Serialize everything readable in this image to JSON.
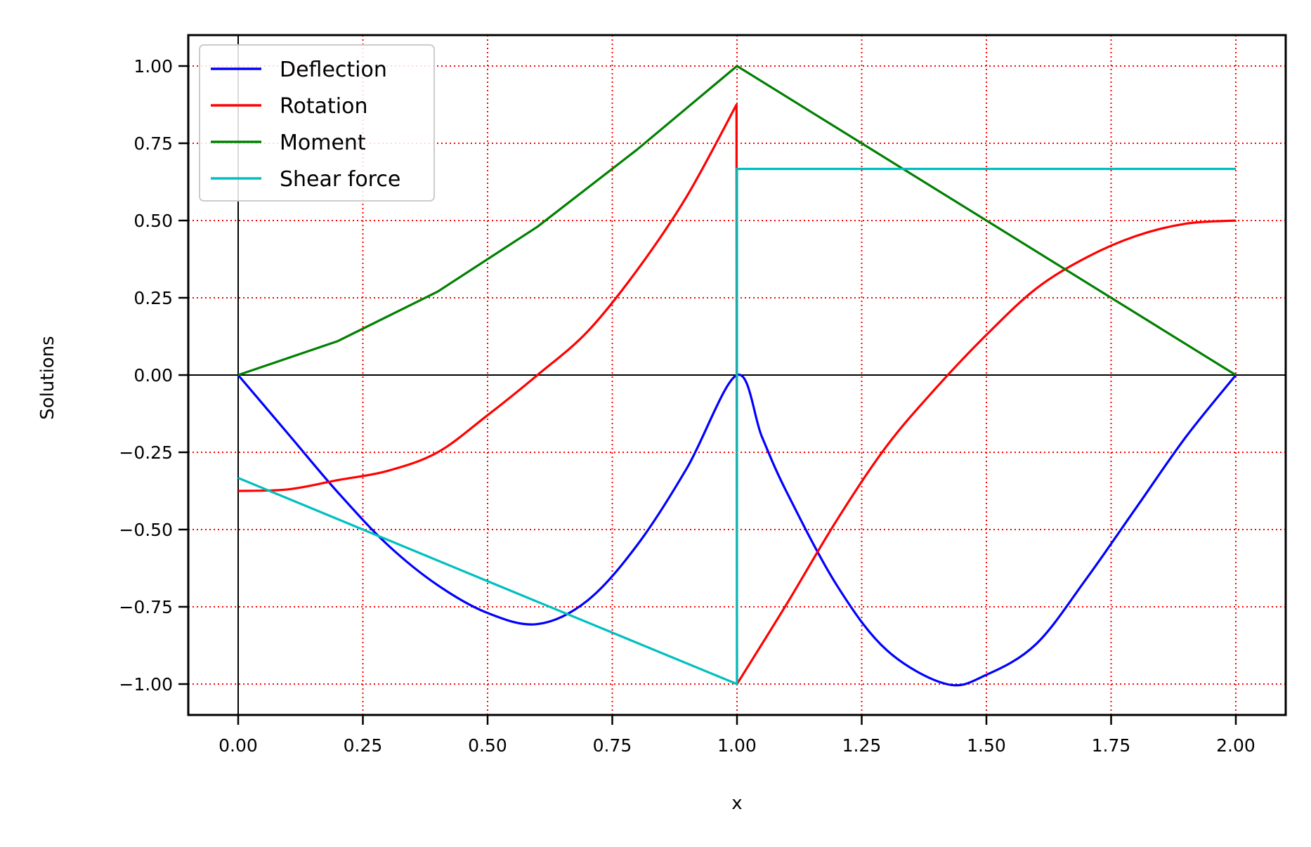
{
  "chart_data": {
    "type": "line",
    "title": "",
    "xlabel": "x",
    "ylabel": "Solutions",
    "xlim": [
      -0.1,
      2.1
    ],
    "ylim": [
      -1.1,
      1.1
    ],
    "xticks": [
      0,
      0.25,
      0.5,
      0.75,
      1.0,
      1.25,
      1.5,
      1.75,
      2.0
    ],
    "xtick_labels": [
      "0.00",
      "0.25",
      "0.50",
      "0.75",
      "1.00",
      "1.25",
      "1.50",
      "1.75",
      "2.00"
    ],
    "yticks": [
      1.0,
      0.75,
      0.5,
      0.25,
      0,
      -0.25,
      -0.5,
      -0.75,
      -1.0
    ],
    "ytick_labels": [
      "1.00",
      "0.75",
      "0.50",
      "0.25",
      "0.00",
      "−0.25",
      "−0.50",
      "−0.75",
      "−1.00"
    ],
    "grid": true,
    "grid_color": "#ff0000",
    "legend_position": "top-left",
    "series": [
      {
        "name": "Deflection",
        "color": "#0000ff",
        "x": [
          0,
          0.1,
          0.2,
          0.3,
          0.4,
          0.5,
          0.6,
          0.7,
          0.8,
          0.9,
          1.0,
          1.05,
          1.1,
          1.2,
          1.3,
          1.42,
          1.5,
          1.6,
          1.7,
          1.8,
          1.9,
          2.0
        ],
        "y": [
          0,
          -0.19,
          -0.38,
          -0.55,
          -0.68,
          -0.77,
          -0.806,
          -0.73,
          -0.55,
          -0.3,
          0,
          -0.2,
          -0.38,
          -0.68,
          -0.89,
          -1.0,
          -0.97,
          -0.87,
          -0.66,
          -0.43,
          -0.2,
          0
        ]
      },
      {
        "name": "Rotation",
        "color": "#ff0000",
        "x": [
          0,
          0.1,
          0.2,
          0.3,
          0.4,
          0.5,
          0.6,
          0.7,
          0.8,
          0.9,
          0.999,
          1.0,
          1.1,
          1.2,
          1.3,
          1.4,
          1.5,
          1.6,
          1.7,
          1.8,
          1.9,
          2.0
        ],
        "y": [
          -0.375,
          -0.37,
          -0.34,
          -0.31,
          -0.25,
          -0.13,
          0,
          0.14,
          0.34,
          0.58,
          0.875,
          -1.0,
          -0.74,
          -0.47,
          -0.23,
          -0.04,
          0.13,
          0.28,
          0.38,
          0.45,
          0.49,
          0.5
        ],
        "annotation": ""
      },
      {
        "name": "Moment",
        "color": "#008000",
        "x": [
          0,
          0.2,
          0.4,
          0.6,
          0.8,
          1.0,
          1.2,
          1.4,
          1.6,
          1.8,
          2.0
        ],
        "y": [
          0,
          0.11,
          0.27,
          0.48,
          0.73,
          1.0,
          0.8,
          0.6,
          0.4,
          0.2,
          0
        ]
      },
      {
        "name": "Shear force",
        "color": "#00bfbf",
        "x": [
          0,
          0.5,
          1.0,
          1.0,
          1.0,
          2.0
        ],
        "y": [
          -0.333,
          -0.667,
          -1.0,
          0,
          0.667,
          0.667
        ]
      }
    ]
  }
}
